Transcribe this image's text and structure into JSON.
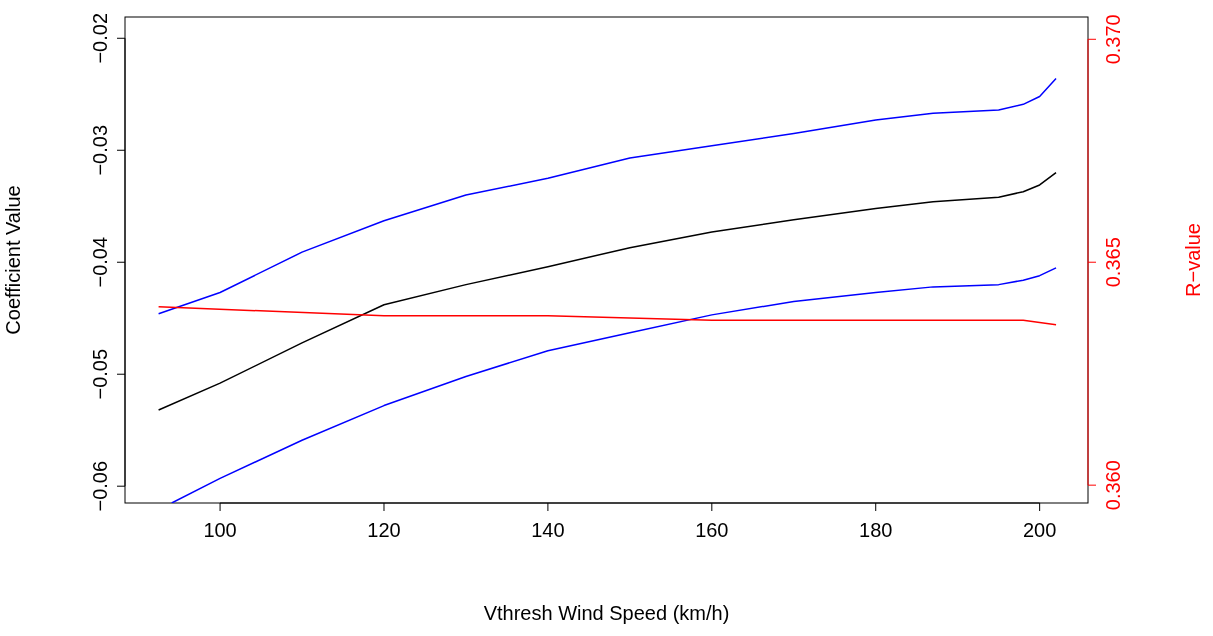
{
  "chart_data": {
    "type": "line",
    "xlabel": "Vthresh Wind Speed (km/h)",
    "ylabel": "Coefficient Value",
    "y2label": "R−value",
    "xlim": [
      88.4,
      205.9
    ],
    "xticks": [
      100,
      120,
      140,
      160,
      180,
      200
    ],
    "ylim": [
      -0.0615,
      -0.0181
    ],
    "yticks": [
      {
        "value": -0.06,
        "label": "−0.06"
      },
      {
        "value": -0.05,
        "label": "−0.05"
      },
      {
        "value": -0.04,
        "label": "−0.04"
      },
      {
        "value": -0.03,
        "label": "−0.03"
      },
      {
        "value": -0.02,
        "label": "−0.02"
      }
    ],
    "y2lim": [
      0.3596,
      0.3705
    ],
    "y2ticks": [
      {
        "value": 0.36,
        "label": "0.360"
      },
      {
        "value": 0.365,
        "label": "0.365"
      },
      {
        "value": 0.37,
        "label": "0.370"
      }
    ],
    "series": [
      {
        "color": "#0000ff",
        "x": [
          92.5,
          100,
          110,
          120,
          130,
          140,
          150,
          160,
          170,
          180,
          187,
          195,
          198,
          200,
          202
        ],
        "values": [
          -0.0446,
          -0.0427,
          -0.0391,
          -0.0363,
          -0.034,
          -0.0325,
          -0.0307,
          -0.0296,
          -0.0285,
          -0.0273,
          -0.0267,
          -0.0264,
          -0.0259,
          -0.0252,
          -0.0236
        ]
      },
      {
        "color": "#000000",
        "x": [
          92.5,
          100,
          110,
          120,
          130,
          140,
          150,
          160,
          170,
          180,
          187,
          195,
          198,
          200,
          202
        ],
        "values": [
          -0.0532,
          -0.0508,
          -0.0472,
          -0.0438,
          -0.042,
          -0.0404,
          -0.0387,
          -0.0373,
          -0.0362,
          -0.0352,
          -0.0346,
          -0.0342,
          -0.0337,
          -0.0331,
          -0.032
        ]
      },
      {
        "color": "#0000ff",
        "x": [
          94.1,
          100,
          110,
          120,
          130,
          140,
          150,
          160,
          170,
          180,
          187,
          195,
          198,
          200,
          202
        ],
        "values": [
          -0.0615,
          -0.0593,
          -0.0559,
          -0.0528,
          -0.0502,
          -0.0479,
          -0.0463,
          -0.0447,
          -0.0435,
          -0.0427,
          -0.0422,
          -0.042,
          -0.0416,
          -0.0412,
          -0.0405
        ]
      },
      {
        "color": "#ff0000",
        "axis": "y2",
        "x": [
          92.5,
          120,
          140,
          160,
          180,
          198,
          202
        ],
        "values": [
          0.364,
          0.3638,
          0.3638,
          0.3637,
          0.3637,
          0.3637,
          0.3636
        ]
      }
    ]
  }
}
